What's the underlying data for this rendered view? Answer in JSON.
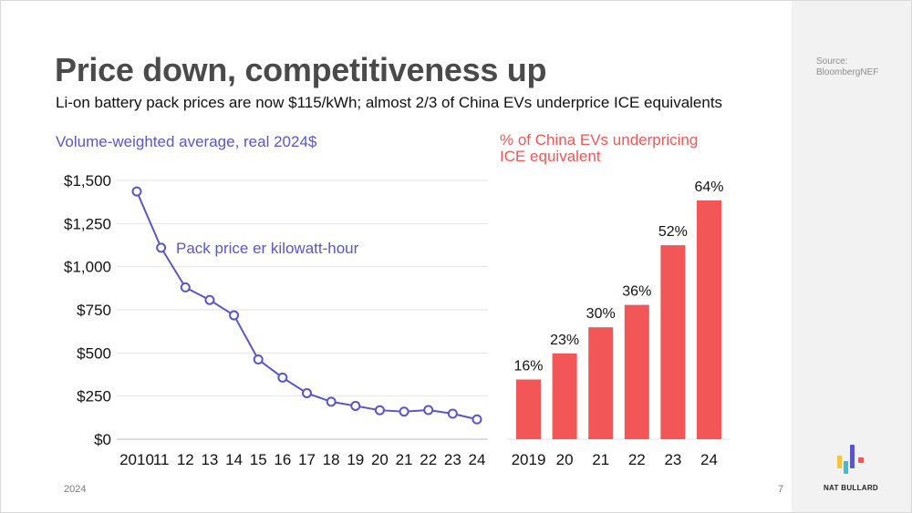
{
  "title": "Price down, competitiveness up",
  "subtitle": "Li-on battery pack prices are now $115/kWh; almost 2/3 of China EVs underprice ICE equivalents",
  "source": "Source: BloombergNEF",
  "footer": {
    "year": "2024",
    "page": "7",
    "brand": "NAT BULLARD"
  },
  "colors": {
    "line": "#5a56c8",
    "bar": "#f25656",
    "title": "#4a4a4a"
  },
  "chart_data": [
    {
      "type": "line",
      "title": "Volume-weighted average, real 2024$",
      "series_label": "Pack price er kilowatt-hour",
      "x": [
        "2010",
        "11",
        "12",
        "13",
        "14",
        "15",
        "16",
        "17",
        "18",
        "19",
        "20",
        "21",
        "22",
        "23",
        "24"
      ],
      "values": [
        1436,
        1110,
        880,
        807,
        718,
        462,
        357,
        267,
        217,
        193,
        168,
        160,
        169,
        148,
        115
      ],
      "ylim": [
        0,
        1500
      ],
      "yticks": [
        0,
        250,
        500,
        750,
        1000,
        1250,
        1500
      ],
      "ytick_labels": [
        "$0",
        "$250",
        "$500",
        "$750",
        "$1,000",
        "$1,250",
        "$1,500"
      ],
      "grid": true
    },
    {
      "type": "bar",
      "title": "% of China EVs underpricing ICE equivalent",
      "categories": [
        "2019",
        "20",
        "21",
        "22",
        "23",
        "24"
      ],
      "values": [
        16,
        23,
        30,
        36,
        52,
        64
      ],
      "value_labels": [
        "16%",
        "23%",
        "30%",
        "36%",
        "52%",
        "64%"
      ],
      "ylim": [
        0,
        64
      ]
    }
  ]
}
